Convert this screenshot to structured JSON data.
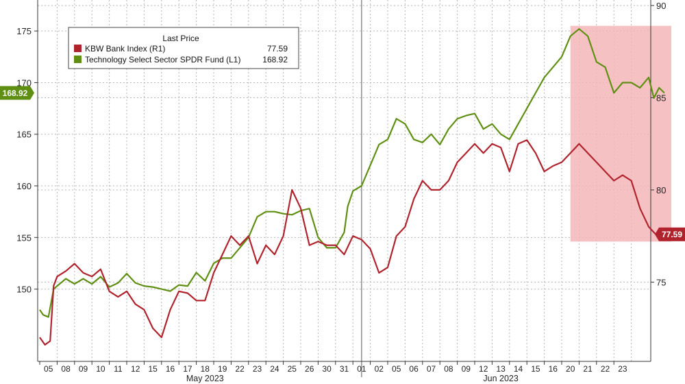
{
  "chart_data": {
    "type": "line",
    "title": "",
    "legend": {
      "title": "Last Price",
      "placement": "top-left",
      "entries": [
        {
          "label": "KBW Bank Index  (R1)",
          "value": "77.59",
          "color": "#b0232d"
        },
        {
          "label": "Technology Select Sector SPDR Fund  (L1)",
          "value": "168.92",
          "color": "#5f8f12"
        }
      ]
    },
    "grid": true,
    "left_axis": {
      "range": [
        143,
        178
      ],
      "ticks": [
        150,
        155,
        160,
        165,
        170,
        175
      ],
      "tick_labels": [
        "150",
        "155",
        "160",
        "165",
        "170",
        "175"
      ]
    },
    "right_axis": {
      "range": [
        70.7,
        90.3
      ],
      "ticks": [
        75,
        80,
        85,
        90
      ],
      "tick_labels": [
        "75",
        "80",
        "85",
        "90"
      ]
    },
    "x_axis": {
      "range": [
        0,
        36
      ],
      "days": [
        "05",
        "08",
        "09",
        "10",
        "11",
        "12",
        "15",
        "16",
        "17",
        "18",
        "19",
        "22",
        "23",
        "24",
        "25",
        "26",
        "30",
        "31",
        "01",
        "02",
        "05",
        "06",
        "07",
        "08",
        "09",
        "12",
        "13",
        "14",
        "15",
        "16",
        "20",
        "21",
        "22",
        "23"
      ],
      "months": [
        {
          "label": "May 2023",
          "at": 9.5
        },
        {
          "label": "Jun 2023",
          "at": 26.5
        }
      ],
      "month_divider_at": 18.5
    },
    "highlight": {
      "x_range": [
        30.5,
        36.3
      ],
      "y_range_left": [
        154.6,
        175.5
      ],
      "color": "#f4b6b9"
    },
    "last_price_badges": [
      {
        "text": "168.92",
        "series": "Technology Select Sector SPDR Fund",
        "axis": "left",
        "color": "#5f8f12"
      },
      {
        "text": "77.59",
        "series": "KBW Bank Index",
        "axis": "right",
        "color": "#b0232d"
      }
    ],
    "series": [
      {
        "name": "Technology Select Sector SPDR Fund",
        "axis": "left",
        "color": "#5f8f12",
        "points": [
          [
            0.0,
            148.0
          ],
          [
            0.2,
            147.5
          ],
          [
            0.5,
            147.3
          ],
          [
            0.8,
            150.0
          ],
          [
            1.0,
            150.3
          ],
          [
            1.5,
            151.0
          ],
          [
            2.0,
            150.5
          ],
          [
            2.5,
            151.0
          ],
          [
            3.0,
            150.5
          ],
          [
            3.5,
            151.2
          ],
          [
            4.0,
            150.2
          ],
          [
            4.5,
            150.6
          ],
          [
            5.0,
            151.5
          ],
          [
            5.5,
            150.6
          ],
          [
            6.0,
            150.3
          ],
          [
            6.5,
            150.2
          ],
          [
            7.0,
            150.0
          ],
          [
            7.5,
            149.8
          ],
          [
            8.0,
            150.4
          ],
          [
            8.5,
            150.3
          ],
          [
            9.0,
            151.6
          ],
          [
            9.5,
            150.8
          ],
          [
            10.0,
            152.5
          ],
          [
            10.5,
            153.0
          ],
          [
            11.0,
            153.0
          ],
          [
            11.5,
            154.0
          ],
          [
            12.0,
            155.0
          ],
          [
            12.5,
            157.0
          ],
          [
            13.0,
            157.5
          ],
          [
            13.5,
            157.5
          ],
          [
            14.0,
            157.3
          ],
          [
            14.5,
            157.2
          ],
          [
            15.0,
            157.6
          ],
          [
            15.5,
            157.8
          ],
          [
            16.0,
            155.0
          ],
          [
            16.5,
            154.0
          ],
          [
            17.0,
            154.0
          ],
          [
            17.5,
            155.5
          ],
          [
            17.7,
            158.0
          ],
          [
            18.0,
            159.5
          ],
          [
            18.5,
            160.0
          ],
          [
            19.0,
            162.0
          ],
          [
            19.5,
            164.0
          ],
          [
            20.0,
            164.5
          ],
          [
            20.5,
            166.5
          ],
          [
            21.0,
            166.0
          ],
          [
            21.5,
            164.5
          ],
          [
            22.0,
            164.2
          ],
          [
            22.5,
            165.0
          ],
          [
            23.0,
            164.0
          ],
          [
            23.5,
            165.5
          ],
          [
            24.0,
            166.5
          ],
          [
            24.5,
            166.8
          ],
          [
            25.0,
            167.0
          ],
          [
            25.5,
            165.5
          ],
          [
            26.0,
            166.0
          ],
          [
            26.5,
            165.0
          ],
          [
            27.0,
            164.5
          ],
          [
            27.5,
            166.0
          ],
          [
            28.0,
            167.5
          ],
          [
            28.5,
            169.0
          ],
          [
            29.0,
            170.5
          ],
          [
            29.5,
            171.5
          ],
          [
            30.0,
            172.5
          ],
          [
            30.5,
            174.5
          ],
          [
            31.0,
            175.2
          ],
          [
            31.5,
            174.5
          ],
          [
            32.0,
            172.0
          ],
          [
            32.5,
            171.5
          ],
          [
            33.0,
            169.0
          ],
          [
            33.5,
            170.0
          ],
          [
            34.0,
            170.0
          ],
          [
            34.5,
            169.5
          ],
          [
            35.0,
            170.5
          ],
          [
            35.3,
            168.5
          ],
          [
            35.6,
            169.5
          ],
          [
            35.9,
            169.0
          ]
        ]
      },
      {
        "name": "KBW Bank Index",
        "axis": "right",
        "color": "#b0232d",
        "points": [
          [
            0.0,
            72.0
          ],
          [
            0.3,
            71.6
          ],
          [
            0.6,
            71.8
          ],
          [
            0.8,
            74.8
          ],
          [
            1.0,
            75.3
          ],
          [
            1.5,
            75.6
          ],
          [
            2.0,
            76.0
          ],
          [
            2.5,
            75.5
          ],
          [
            3.0,
            75.3
          ],
          [
            3.5,
            75.7
          ],
          [
            4.0,
            74.5
          ],
          [
            4.5,
            74.2
          ],
          [
            5.0,
            74.5
          ],
          [
            5.5,
            73.8
          ],
          [
            6.0,
            73.5
          ],
          [
            6.5,
            72.5
          ],
          [
            7.0,
            72.0
          ],
          [
            7.5,
            73.5
          ],
          [
            8.0,
            74.5
          ],
          [
            8.5,
            74.4
          ],
          [
            9.0,
            74.0
          ],
          [
            9.5,
            74.0
          ],
          [
            10.0,
            75.5
          ],
          [
            10.5,
            76.5
          ],
          [
            11.0,
            77.5
          ],
          [
            11.5,
            77.0
          ],
          [
            12.0,
            77.5
          ],
          [
            12.5,
            76.0
          ],
          [
            13.0,
            77.0
          ],
          [
            13.5,
            76.5
          ],
          [
            14.0,
            77.5
          ],
          [
            14.5,
            80.0
          ],
          [
            15.0,
            79.0
          ],
          [
            15.5,
            77.0
          ],
          [
            16.0,
            77.2
          ],
          [
            16.5,
            77.0
          ],
          [
            17.0,
            77.0
          ],
          [
            17.5,
            76.5
          ],
          [
            18.0,
            77.5
          ],
          [
            18.5,
            77.3
          ],
          [
            19.0,
            76.8
          ],
          [
            19.5,
            75.5
          ],
          [
            20.0,
            75.8
          ],
          [
            20.5,
            77.5
          ],
          [
            21.0,
            78.0
          ],
          [
            21.5,
            79.5
          ],
          [
            22.0,
            80.5
          ],
          [
            22.5,
            80.0
          ],
          [
            23.0,
            80.0
          ],
          [
            23.5,
            80.5
          ],
          [
            24.0,
            81.5
          ],
          [
            24.5,
            82.0
          ],
          [
            25.0,
            82.5
          ],
          [
            25.5,
            82.0
          ],
          [
            26.0,
            82.5
          ],
          [
            26.5,
            82.3
          ],
          [
            27.0,
            81.0
          ],
          [
            27.5,
            82.5
          ],
          [
            28.0,
            82.7
          ],
          [
            28.5,
            82.0
          ],
          [
            29.0,
            81.0
          ],
          [
            29.5,
            81.3
          ],
          [
            30.0,
            81.5
          ],
          [
            30.5,
            82.0
          ],
          [
            31.0,
            82.5
          ],
          [
            31.5,
            82.0
          ],
          [
            32.0,
            81.5
          ],
          [
            32.5,
            81.0
          ],
          [
            33.0,
            80.5
          ],
          [
            33.5,
            80.8
          ],
          [
            34.0,
            80.5
          ],
          [
            34.5,
            79.0
          ],
          [
            35.0,
            78.0
          ],
          [
            35.5,
            77.5
          ],
          [
            35.9,
            77.59
          ]
        ]
      }
    ]
  }
}
